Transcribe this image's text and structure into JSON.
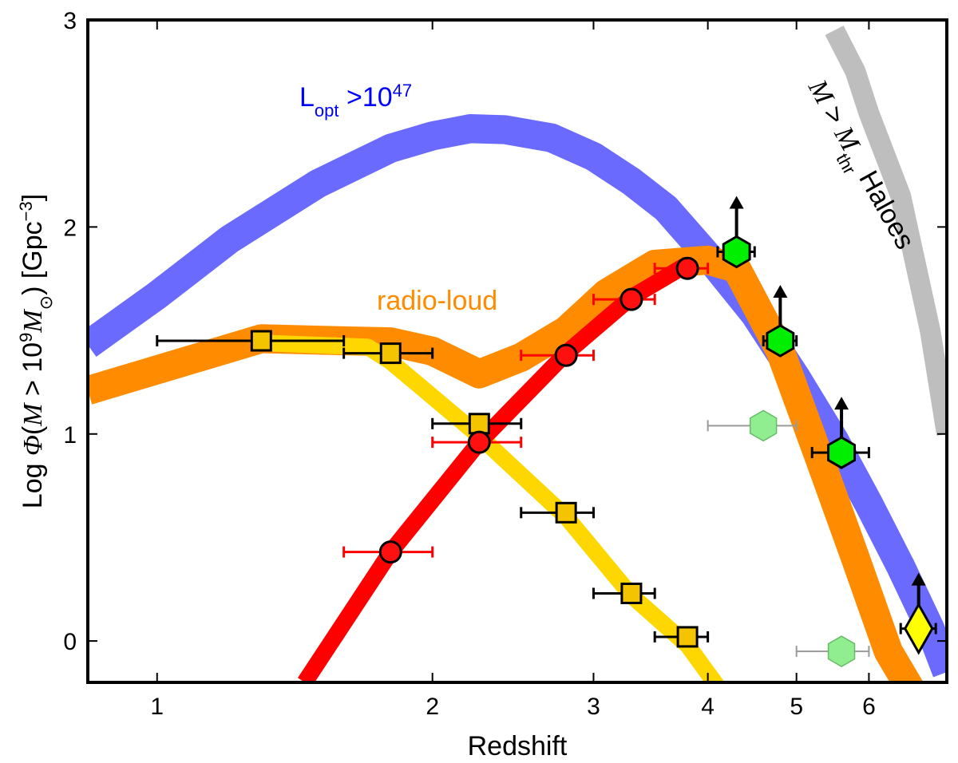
{
  "chart_data": {
    "type": "line",
    "xscale": "log",
    "xlabel": "Redshift",
    "ylabel": "Log Φ(M > 10⁹M⊙) [Gpc⁻³]",
    "xlim": [
      0.84,
      7.3
    ],
    "ylim": [
      -0.2,
      3
    ],
    "xticks": [
      1,
      2,
      3,
      4,
      5,
      6
    ],
    "xtick_labels": [
      "1",
      "2",
      "3",
      "4",
      "5",
      "6"
    ],
    "yticks": [
      0,
      1,
      2,
      3
    ],
    "ytick_labels": [
      "0",
      "1",
      "2",
      "3"
    ],
    "annotations": {
      "blue": "L_opt >10^47",
      "orange": "radio-loud",
      "gray": "M > M_thr Haloes"
    },
    "bands": [
      {
        "name": "Lopt > 10^47",
        "color": "#6a6aff",
        "width": 0.14,
        "x": [
          0.84,
          1.0,
          1.2,
          1.5,
          1.8,
          2.0,
          2.2,
          2.4,
          2.7,
          3.0,
          3.3,
          3.6,
          4.0,
          4.5,
          5.0,
          5.5,
          6.0,
          6.5,
          7.0,
          7.3
        ],
        "y": [
          1.43,
          1.67,
          1.94,
          2.21,
          2.38,
          2.44,
          2.475,
          2.47,
          2.43,
          2.34,
          2.22,
          2.09,
          1.86,
          1.58,
          1.27,
          0.97,
          0.66,
          0.36,
          0.06,
          -0.15
        ]
      },
      {
        "name": "radio-loud",
        "color": "#ff8c00",
        "width": 0.14,
        "x": [
          0.84,
          1.3,
          1.6,
          1.8,
          2.0,
          2.25,
          2.5,
          2.8,
          3.1,
          3.5,
          4.0,
          4.3,
          4.8,
          5.3,
          5.8,
          6.3,
          6.7
        ],
        "y": [
          1.21,
          1.46,
          1.45,
          1.445,
          1.4,
          1.29,
          1.37,
          1.5,
          1.68,
          1.82,
          1.84,
          1.8,
          1.4,
          0.88,
          0.4,
          -0.05,
          -0.25
        ]
      },
      {
        "name": "gold-population",
        "color": "#ffd700",
        "width": 0.08,
        "x": [
          1.3,
          1.7,
          1.8,
          2.25,
          2.8,
          3.3,
          3.8,
          4.1
        ],
        "y": [
          1.44,
          1.42,
          1.35,
          0.99,
          0.6,
          0.22,
          -0.02,
          -0.22
        ]
      },
      {
        "name": "red-population",
        "color": "#ff0000",
        "width": 0.08,
        "x": [
          1.45,
          1.8,
          2.25,
          2.8,
          3.3,
          3.8
        ],
        "y": [
          -0.2,
          0.43,
          0.96,
          1.39,
          1.66,
          1.82
        ]
      },
      {
        "name": "M > Mthr Haloes",
        "color": "#bebebe",
        "width": 0.1,
        "x": [
          5.5,
          5.8,
          6.0,
          6.5,
          7.0,
          7.3
        ],
        "y": [
          2.95,
          2.75,
          2.55,
          2.15,
          1.5,
          1.0
        ]
      }
    ],
    "series": [
      {
        "name": "squares",
        "marker": "square",
        "color": "#f5c400",
        "edge": "#000000",
        "errcolor": "#000000",
        "x": [
          1.3,
          1.8,
          2.25,
          2.8,
          3.3,
          3.8
        ],
        "y": [
          1.45,
          1.39,
          1.05,
          0.62,
          0.23,
          0.02
        ],
        "xerr_lo": [
          1.0,
          1.6,
          2.0,
          2.5,
          3.0,
          3.5
        ],
        "xerr_hi": [
          1.6,
          2.0,
          2.5,
          3.0,
          3.5,
          4.0
        ]
      },
      {
        "name": "circles",
        "marker": "circle",
        "color": "#ff1010",
        "edge": "#000000",
        "errcolor": "#ff0000",
        "x": [
          1.8,
          2.25,
          2.8,
          3.3,
          3.8
        ],
        "y": [
          0.43,
          0.96,
          1.38,
          1.65,
          1.8
        ],
        "xerr_lo": [
          1.6,
          2.0,
          2.5,
          3.0,
          3.5
        ],
        "xerr_hi": [
          2.0,
          2.5,
          3.0,
          3.5,
          4.0
        ]
      },
      {
        "name": "hexagons",
        "marker": "hexagon",
        "color": "#00ee00",
        "edge": "#000000",
        "errcolor": "#000000",
        "arrow": true,
        "x": [
          4.3,
          4.8,
          5.6
        ],
        "y": [
          1.88,
          1.45,
          0.91
        ],
        "xerr_lo": [
          4.1,
          4.6,
          5.2
        ],
        "xerr_hi": [
          4.5,
          5.0,
          6.0
        ]
      },
      {
        "name": "faint-hexagons",
        "marker": "hexagon",
        "color": "#90ee90",
        "edge": "#66bb66",
        "errcolor": "#9a9a9a",
        "x": [
          4.6,
          5.6
        ],
        "y": [
          1.04,
          -0.05
        ],
        "xerr_lo": [
          4.0,
          5.0
        ],
        "xerr_hi": [
          5.0,
          6.0
        ]
      },
      {
        "name": "diamond",
        "marker": "diamond",
        "color": "#ffff00",
        "edge": "#000000",
        "errcolor": "#000000",
        "arrow": true,
        "x": [
          6.8
        ],
        "y": [
          0.06
        ],
        "xerr_lo": [
          6.5
        ],
        "xerr_hi": [
          7.1
        ]
      }
    ]
  }
}
